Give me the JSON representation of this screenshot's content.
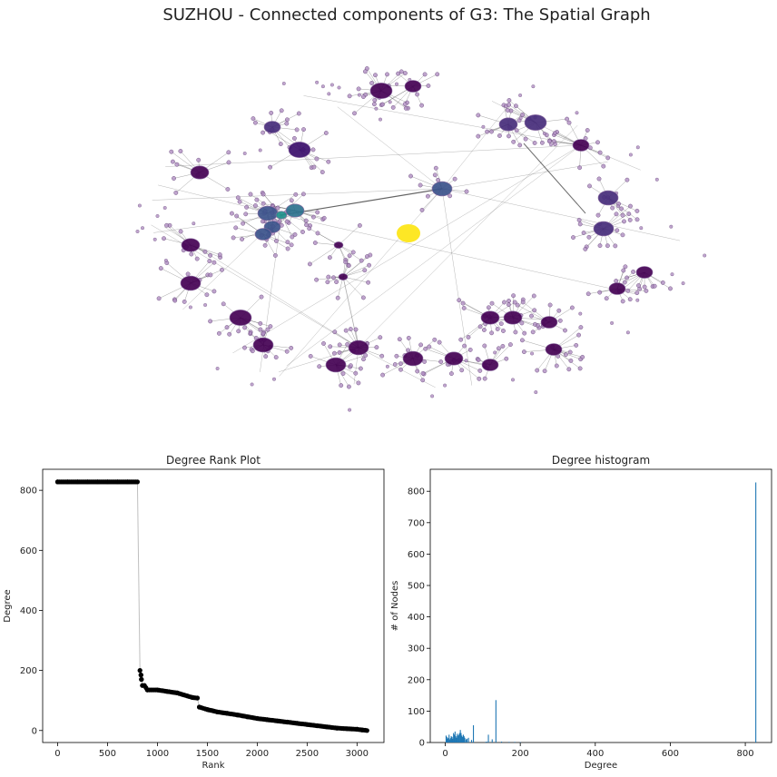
{
  "figure": {
    "suptitle": "SUZHOU - Connected components of G3: The Spatial Graph"
  },
  "chart_data": [
    {
      "type": "network",
      "title": "",
      "layout": "ring",
      "nodes_approx": 3100,
      "hub_colors": [
        "#440154",
        "#472d7b",
        "#3b528b",
        "#2c728e",
        "#21918c",
        "#fde725"
      ],
      "node_color": "#b08ec2",
      "edge_color": "#333333"
    },
    {
      "type": "scatter",
      "title": "Degree Rank Plot",
      "xlabel": "Rank",
      "ylabel": "Degree",
      "xlim": [
        -150,
        3270
      ],
      "ylim": [
        -40,
        870
      ],
      "xticks": [
        "0",
        "500",
        "1000",
        "1500",
        "2000",
        "2500",
        "3000"
      ],
      "yticks": [
        "0",
        "200",
        "400",
        "600",
        "800"
      ],
      "x": [
        0,
        100,
        200,
        300,
        400,
        500,
        600,
        700,
        800,
        825,
        835,
        840,
        850,
        870,
        900,
        1000,
        1100,
        1200,
        1300,
        1350,
        1400,
        1420,
        1500,
        1600,
        1700,
        1800,
        1900,
        2000,
        2100,
        2200,
        2300,
        2400,
        2500,
        2600,
        2700,
        2800,
        2900,
        3000,
        3050,
        3100
      ],
      "y": [
        828,
        828,
        828,
        828,
        828,
        828,
        828,
        828,
        828,
        200,
        185,
        170,
        150,
        150,
        135,
        135,
        130,
        125,
        115,
        110,
        108,
        78,
        70,
        62,
        57,
        52,
        46,
        40,
        36,
        32,
        28,
        24,
        20,
        16,
        12,
        8,
        6,
        4,
        2,
        0
      ],
      "marker_color": "#000000"
    },
    {
      "type": "bar",
      "title": "Degree histogram",
      "xlabel": "Degree",
      "ylabel": "# of Nodes",
      "xlim": [
        -40,
        870
      ],
      "ylim": [
        0,
        870
      ],
      "xticks": [
        "0",
        "200",
        "400",
        "600",
        "800"
      ],
      "yticks": [
        "0",
        "100",
        "200",
        "300",
        "400",
        "500",
        "600",
        "700",
        "800"
      ],
      "x": [
        2,
        4,
        6,
        8,
        10,
        12,
        14,
        16,
        18,
        20,
        22,
        24,
        26,
        28,
        30,
        32,
        34,
        36,
        38,
        40,
        42,
        44,
        46,
        48,
        50,
        52,
        55,
        58,
        62,
        70,
        75,
        108,
        110,
        115,
        125,
        135,
        150,
        170,
        185,
        200,
        828
      ],
      "values": [
        22,
        18,
        12,
        15,
        25,
        10,
        14,
        20,
        18,
        12,
        30,
        25,
        35,
        20,
        15,
        28,
        22,
        25,
        30,
        40,
        30,
        22,
        18,
        25,
        20,
        15,
        10,
        12,
        15,
        8,
        55,
        2,
        3,
        25,
        10,
        135,
        3,
        2,
        2,
        1,
        828
      ],
      "bar_color": "#1f77b4"
    }
  ]
}
